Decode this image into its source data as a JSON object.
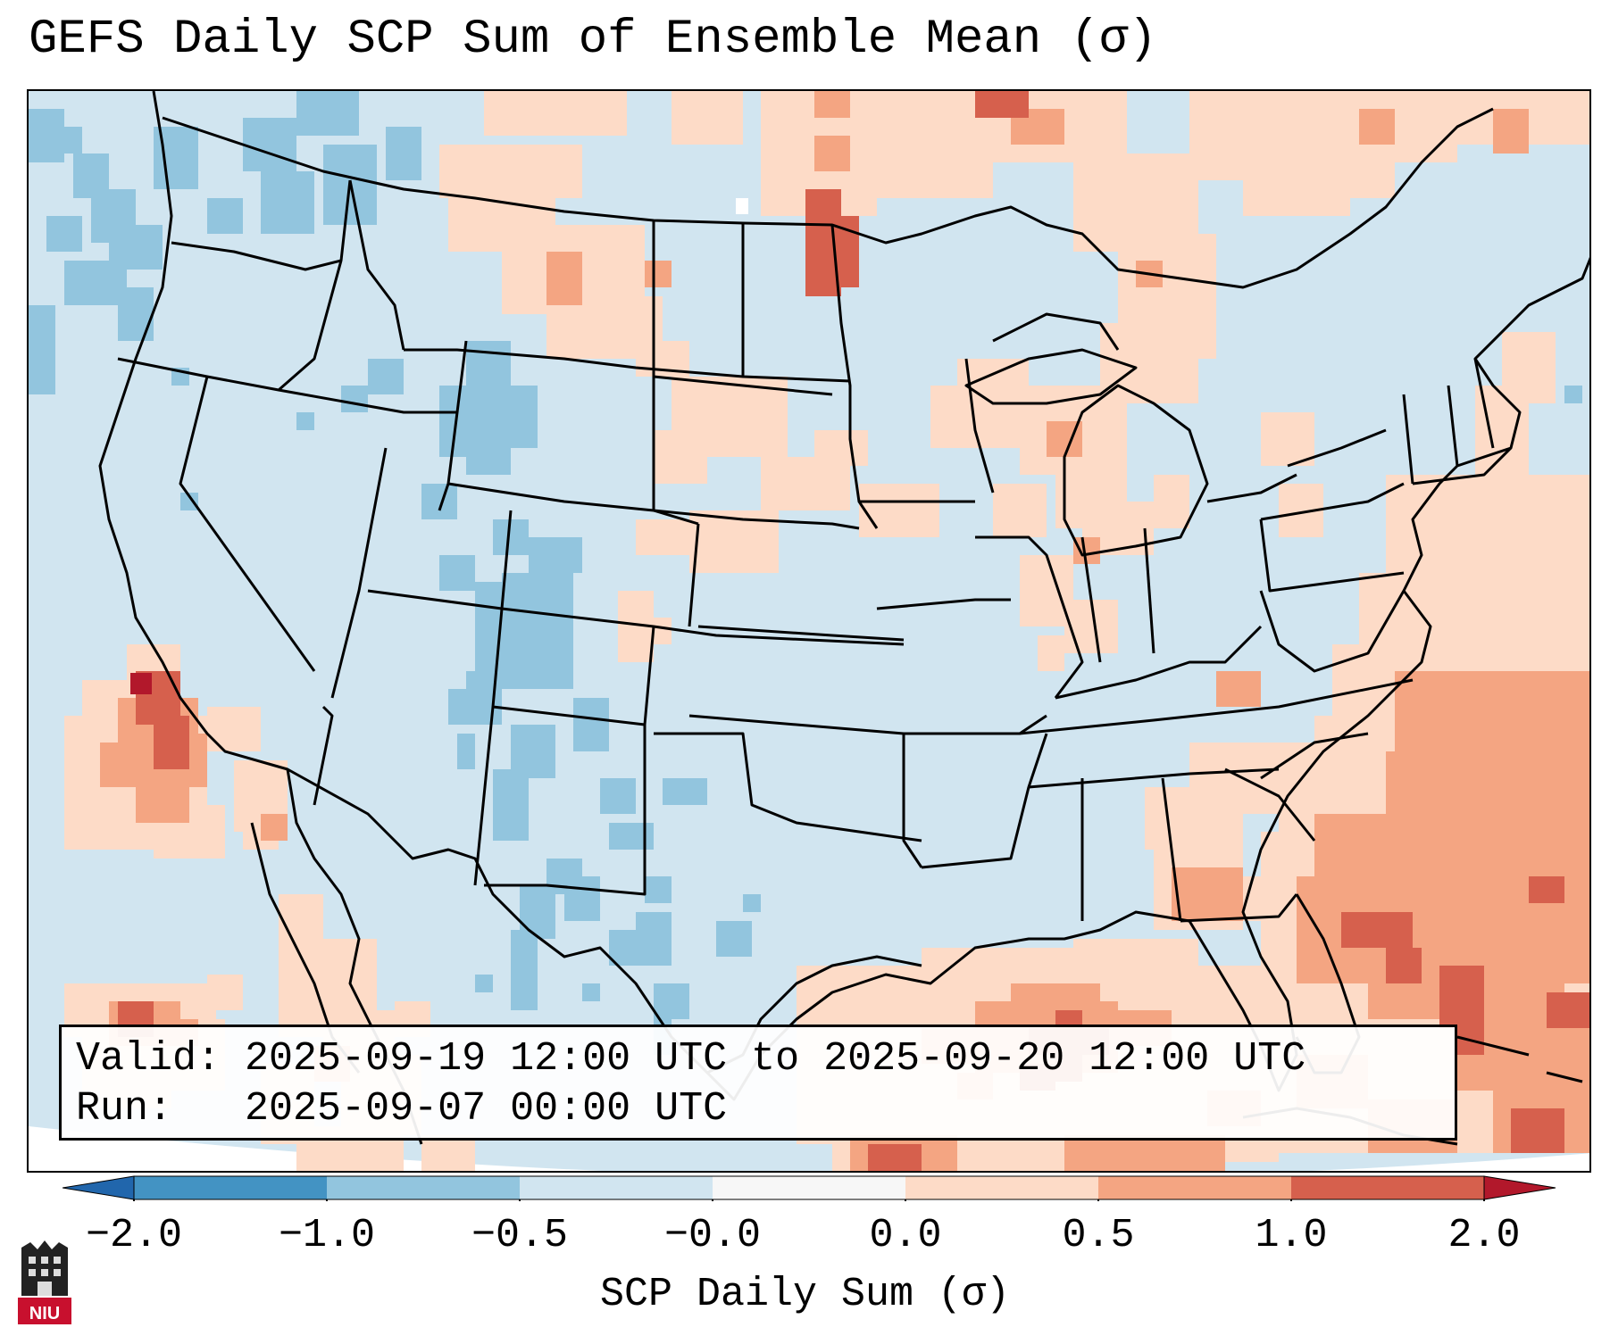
{
  "title": "GEFS Daily SCP Sum of Ensemble Mean (σ)",
  "map": {
    "description_layer": "CONUS map",
    "colors": {
      "neutral_light_blue": "#d1e5f0",
      "medium_blue": "#92c5de",
      "dark_blue": "#4393c3",
      "light_red": "#fddbc7",
      "medium_red": "#f4a582",
      "dark_red": "#d6604d",
      "deep_red": "#b2182b",
      "land_outline": "#000000"
    }
  },
  "info_box": {
    "valid_label": "Valid:",
    "valid_value": "2025-09-19 12:00 UTC to 2025-09-20 12:00 UTC",
    "run_label": "Run:",
    "run_value": "2025-09-07 00:00 UTC"
  },
  "colorbar": {
    "label": "SCP Daily Sum (σ)",
    "ticks": [
      "−2.0",
      "−1.0",
      "−0.5",
      "−0.0",
      "0.0",
      "0.5",
      "1.0",
      "2.0"
    ],
    "bins": [
      {
        "from": -2.0,
        "to": -1.0,
        "color": "#4393c3"
      },
      {
        "from": -1.0,
        "to": -0.5,
        "color": "#92c5de"
      },
      {
        "from": -0.5,
        "to": -0.0,
        "color": "#d1e5f0"
      },
      {
        "from": -0.0,
        "to": 0.0,
        "color": "#f7f7f7"
      },
      {
        "from": 0.0,
        "to": 0.5,
        "color": "#fddbc7"
      },
      {
        "from": 0.5,
        "to": 1.0,
        "color": "#f4a582"
      },
      {
        "from": 1.0,
        "to": 2.0,
        "color": "#d6604d"
      }
    ],
    "extend_low_color": "#2166ac",
    "extend_high_color": "#b2182b"
  },
  "logo": {
    "text": "NIU"
  }
}
